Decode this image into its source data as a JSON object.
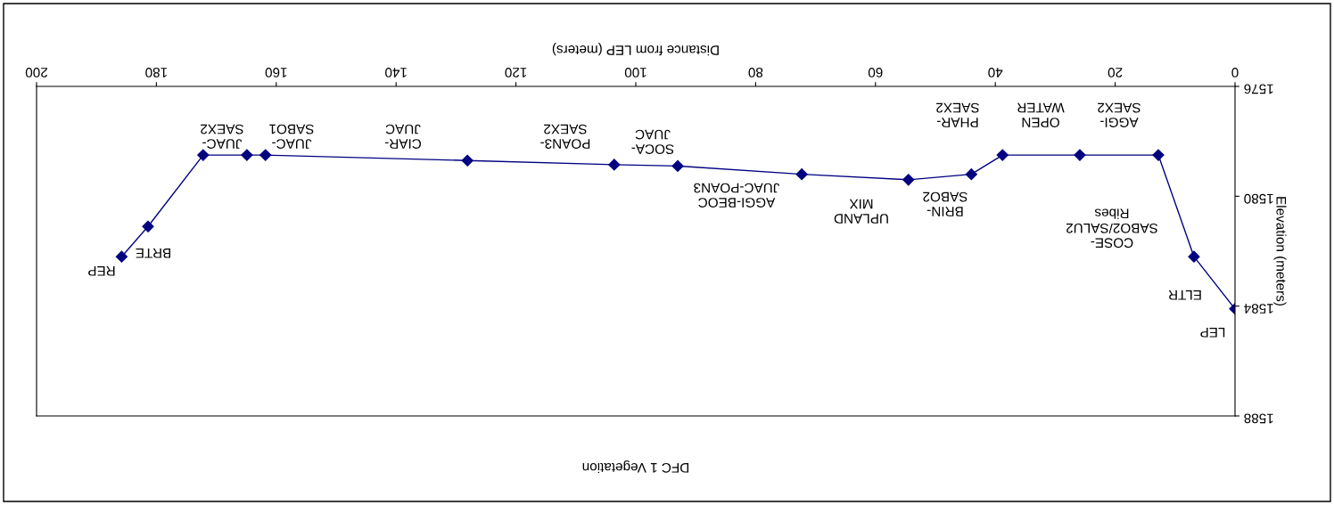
{
  "chart_data": {
    "type": "line",
    "title": "DFC 1 Vegetation",
    "xlabel": "Distance from LEP (meters)",
    "ylabel": "Elevation (meters)",
    "x": [
      0,
      6.85,
      12.8,
      25.9,
      38.8,
      44.0,
      54.5,
      72.3,
      93.0,
      103.6,
      128.1,
      161.8,
      164.9,
      172.2,
      181.4,
      185.8
    ],
    "series": [
      {
        "color": "#000080",
        "values": [
          1584.1,
          1582.2,
          1578.5,
          1578.5,
          1578.5,
          1579.2,
          1579.4,
          1579.2,
          1578.9,
          1578.85,
          1578.7,
          1578.5,
          1578.5,
          1578.5,
          1581.1,
          1582.2
        ]
      }
    ],
    "xlim": [
      200,
      0
    ],
    "xticks": [
      0,
      20,
      40,
      60,
      80,
      100,
      120,
      140,
      160,
      180,
      200
    ],
    "ylim": [
      1588,
      1576
    ],
    "yticks": [
      1576,
      1580,
      1584,
      1588
    ],
    "marker": "diamond",
    "line_style": "solid",
    "grid": false,
    "legend": false,
    "annotations": [
      "LEP",
      "ELTR",
      "COSE-\nSABO2/SALU2\nRibes",
      "AGGI-\nSAEX2",
      "OPEN\nWATER",
      "PHAR-\nSAEX2",
      "BRIN-\nSABO2",
      "UPLAND\nMIX",
      "AGGI-BEOC\nJUAC-POAN3",
      "SOCA-\nJUAC",
      "POAN3-\nSAEX2",
      "CIAR-\nJUAC",
      "JUAC-\nSABO1",
      "JUAC-\nSAEX2",
      "BRTE",
      "REP"
    ]
  }
}
